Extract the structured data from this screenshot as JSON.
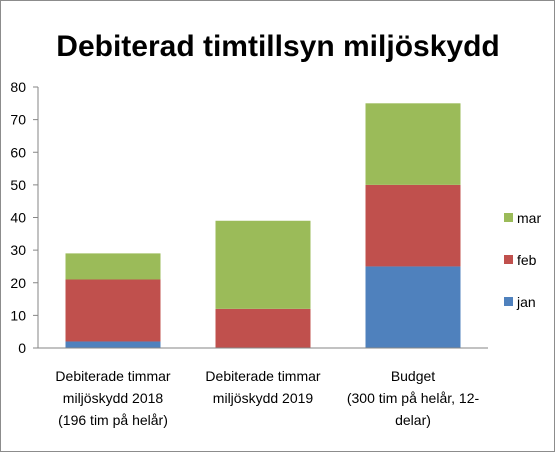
{
  "chart_data": {
    "type": "bar",
    "stacked": true,
    "title": "Debiterad timtillsyn miljöskydd",
    "xlabel": "",
    "ylabel": "",
    "ylim": [
      0,
      80
    ],
    "yticks": [
      0,
      10,
      20,
      30,
      40,
      50,
      60,
      70,
      80
    ],
    "grid": false,
    "legend_position": "right",
    "categories": [
      [
        "Debiterade timmar",
        "miljöskydd 2018",
        "(196 tim på helår)"
      ],
      [
        "Debiterade timmar",
        "miljöskydd 2019"
      ],
      [
        "Budget",
        "(300 tim på helår, 12-",
        "delar)"
      ]
    ],
    "series": [
      {
        "name": "jan",
        "color": "#4f81bd",
        "values": [
          2,
          0,
          25
        ]
      },
      {
        "name": "feb",
        "color": "#c0504d",
        "values": [
          19,
          12,
          25
        ]
      },
      {
        "name": "mar",
        "color": "#9bbb59",
        "values": [
          8,
          27,
          25
        ]
      }
    ]
  }
}
